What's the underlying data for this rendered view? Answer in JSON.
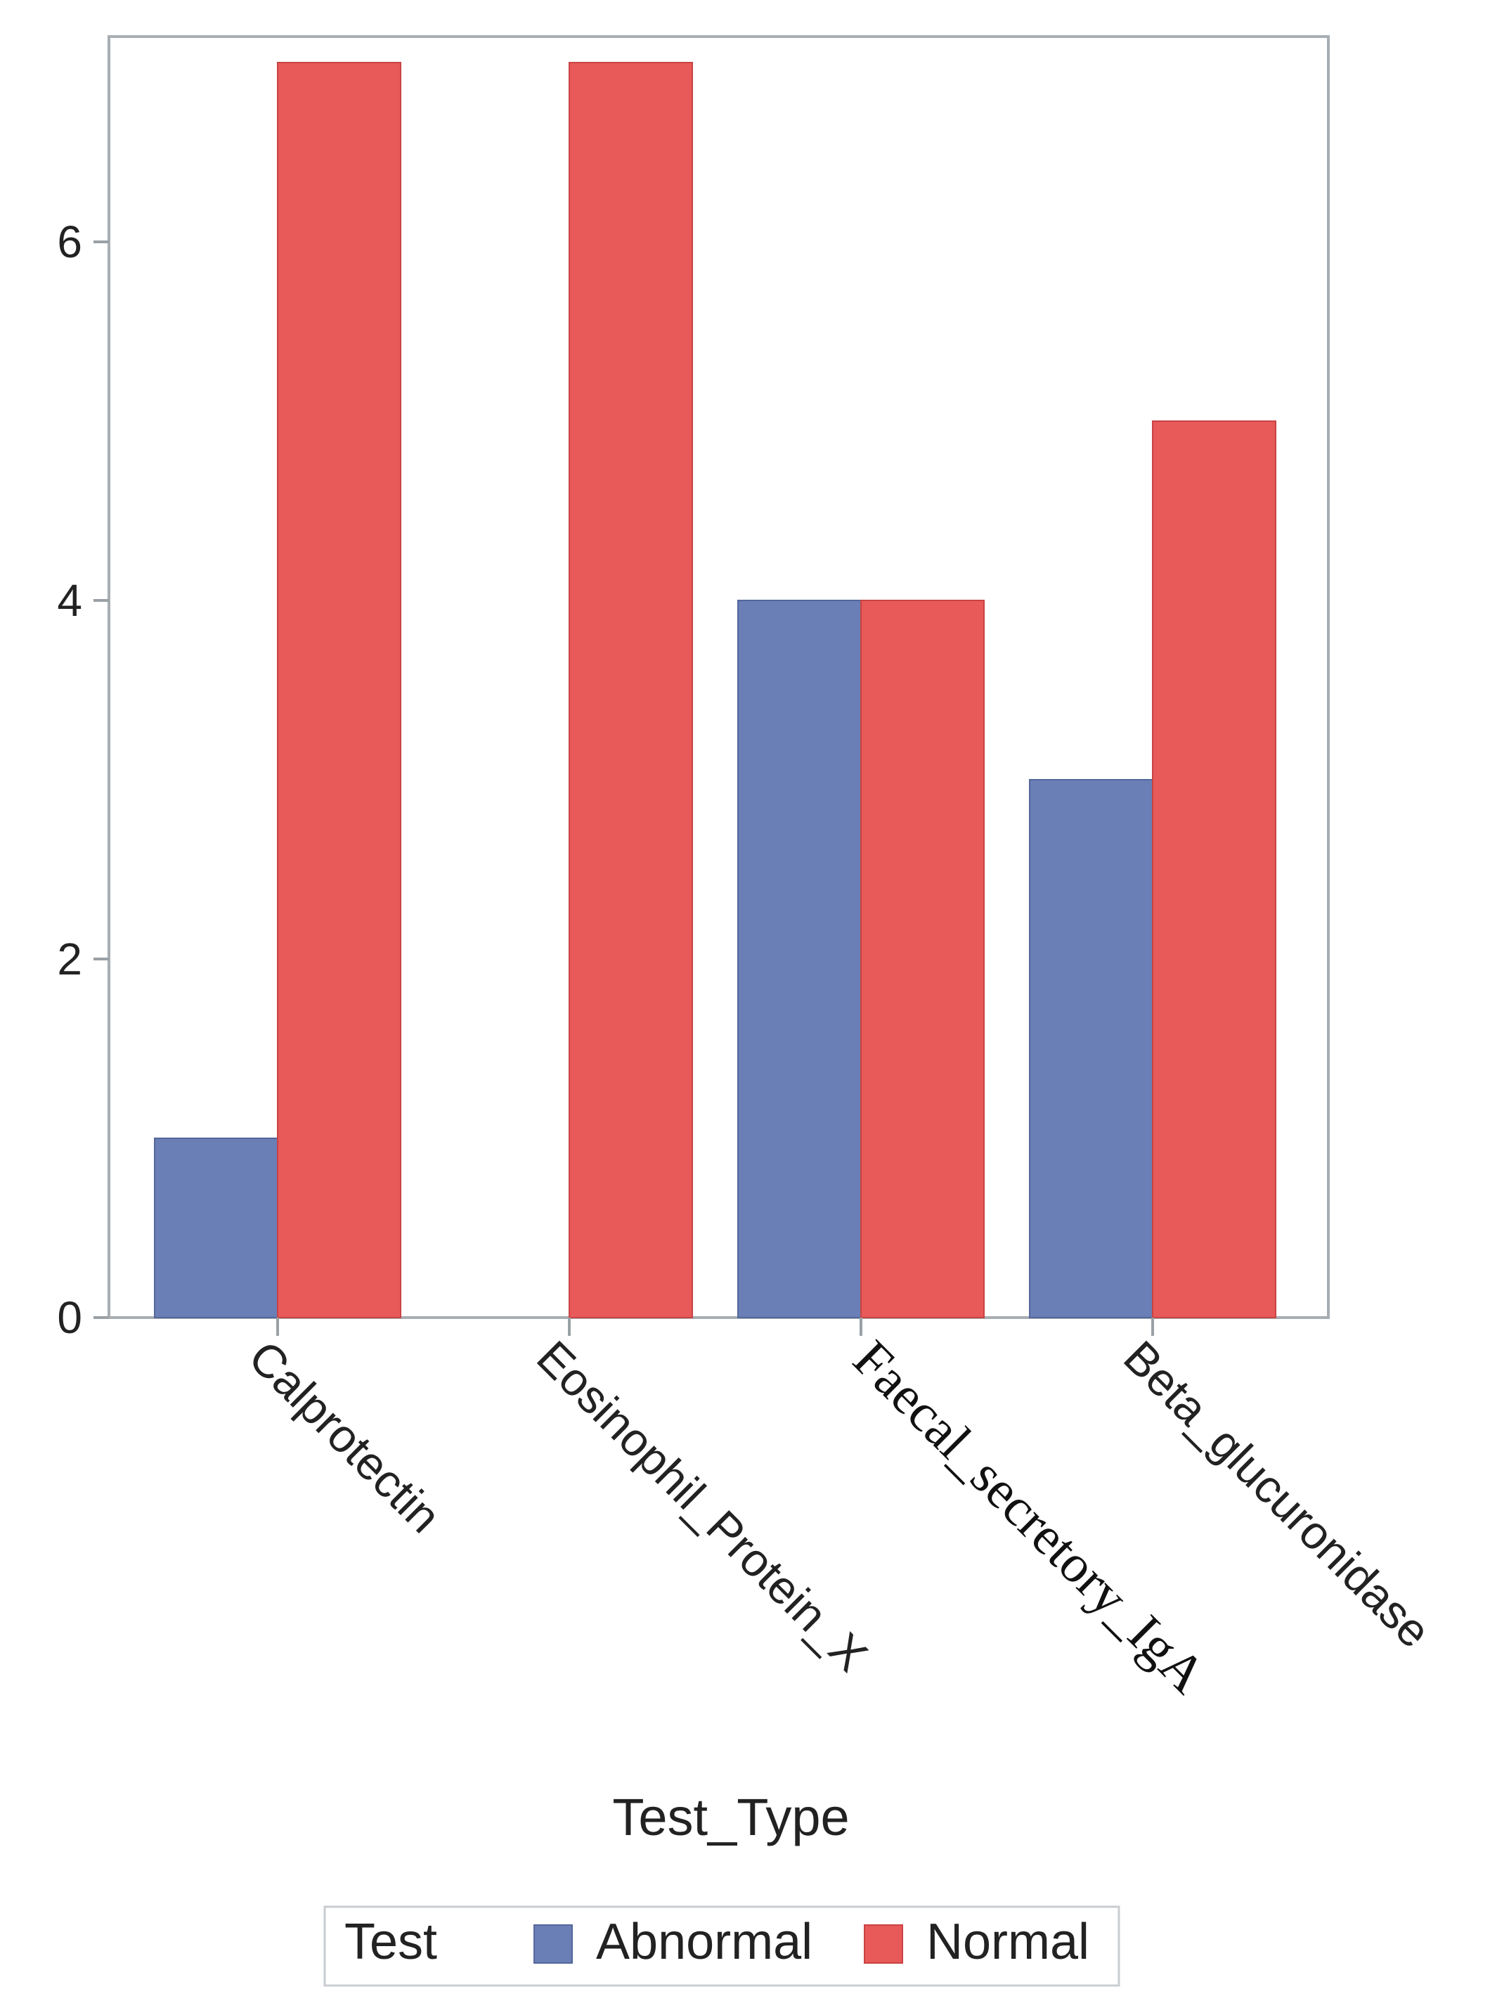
{
  "chart_data": {
    "type": "bar",
    "categories": [
      "Calprotectin",
      "Eosinophil_Protein_X",
      "Faecal_secretory_IgA",
      "Beta_glucuronidase"
    ],
    "series": [
      {
        "name": "Abnormal",
        "color": "#6a7fb6",
        "values": [
          1,
          0,
          4,
          3
        ]
      },
      {
        "name": "Normal",
        "color": "#e85a5a",
        "values": [
          7,
          7,
          4,
          5
        ]
      }
    ],
    "xlabel": "Test_Type",
    "ylabel": "",
    "ylim": [
      0,
      7.1
    ],
    "yticks": [
      0,
      2,
      4,
      6
    ],
    "legend": {
      "title": "Test",
      "placement": "bottom"
    },
    "grid": false
  }
}
